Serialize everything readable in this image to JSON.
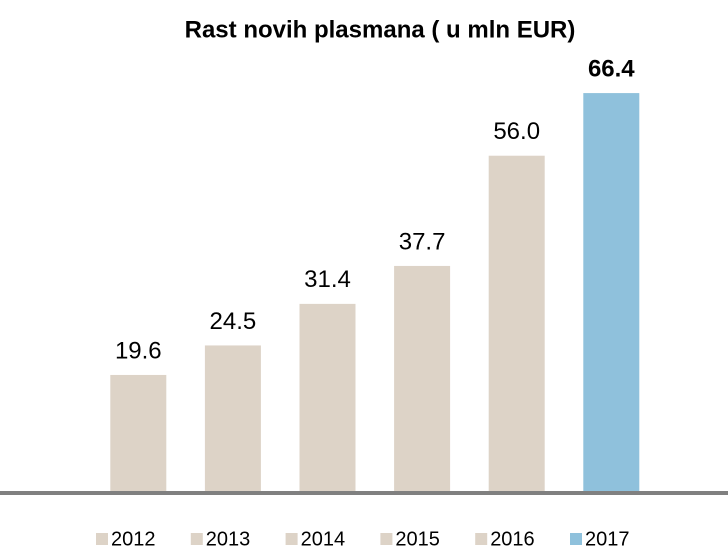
{
  "chart_data": {
    "type": "bar",
    "title": "Rast novih plasmana ( u mln EUR)",
    "series": [
      {
        "name": "2012",
        "color": "#ddd3c7",
        "values": [
          19.6
        ]
      },
      {
        "name": "2013",
        "color": "#ddd3c7",
        "values": [
          24.5
        ]
      },
      {
        "name": "2014",
        "color": "#ddd3c7",
        "values": [
          31.4
        ]
      },
      {
        "name": "2015",
        "color": "#ddd3c7",
        "values": [
          37.7
        ]
      },
      {
        "name": "2016",
        "color": "#ddd3c7",
        "values": [
          56.0
        ]
      },
      {
        "name": "2017",
        "color": "#8fc1dc",
        "values": [
          66.4
        ],
        "label_weight": "bold"
      }
    ],
    "value_labels": [
      "19.6",
      "24.5",
      "31.4",
      "37.7",
      "56.0",
      "66.4"
    ],
    "ylim": [
      0,
      70
    ],
    "legend": "bottom"
  }
}
